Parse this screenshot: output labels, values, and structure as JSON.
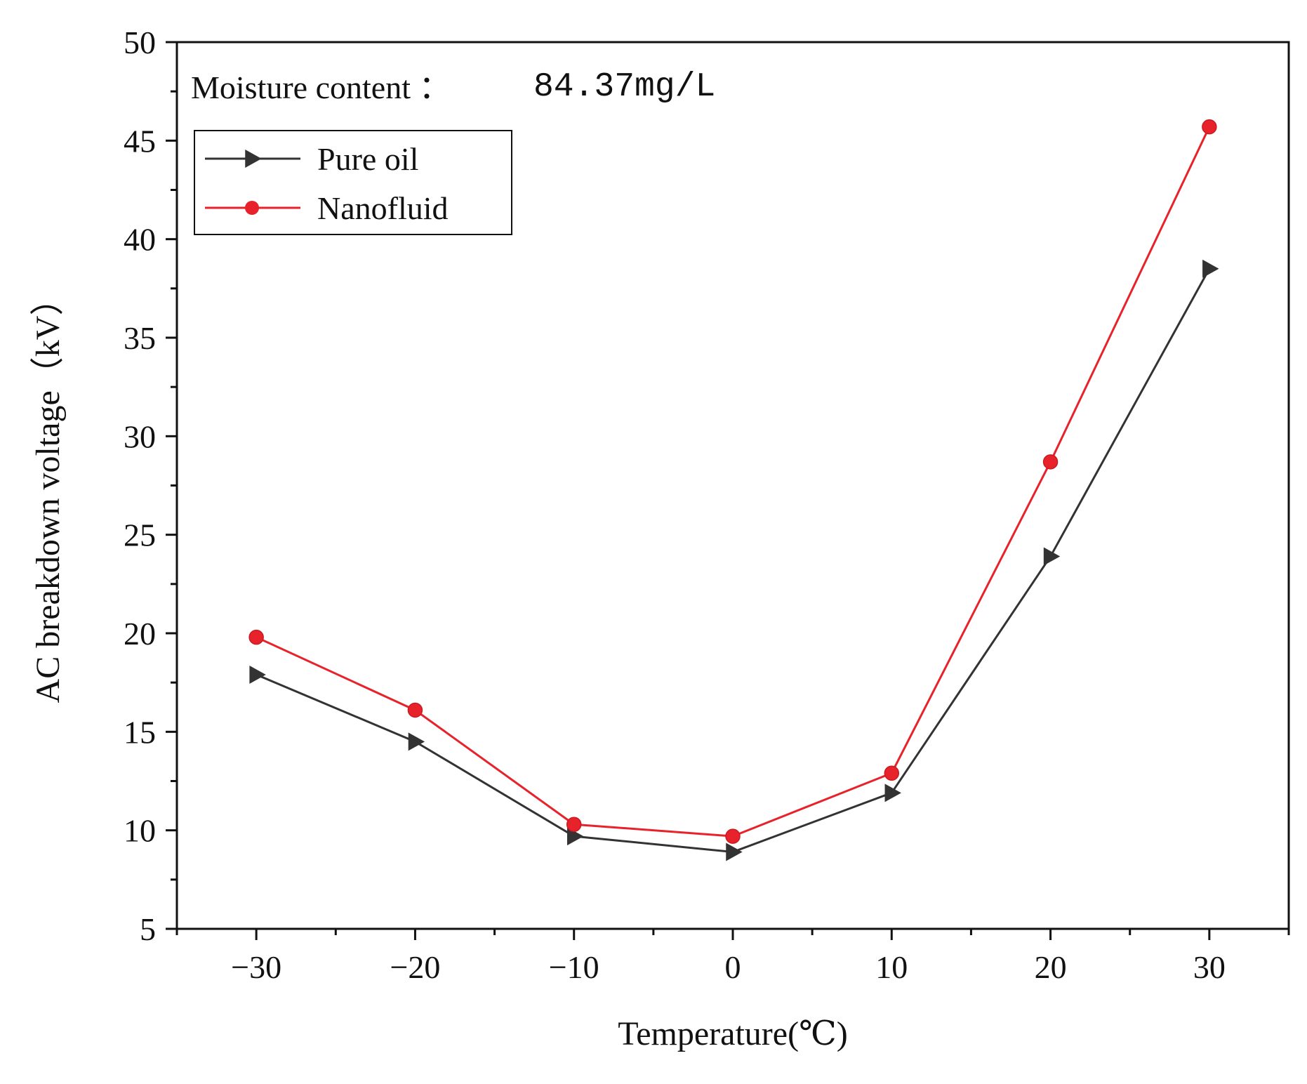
{
  "chart_data": {
    "type": "line",
    "title": "",
    "xlabel": "Temperature(℃)",
    "ylabel": "AC breakdown voltage（kV）",
    "xlim": [
      -35,
      35
    ],
    "ylim": [
      5,
      50
    ],
    "x_ticks": [
      -30,
      -20,
      -10,
      0,
      10,
      20,
      30
    ],
    "y_ticks": [
      5,
      10,
      15,
      20,
      25,
      30,
      35,
      40,
      45,
      50
    ],
    "x_tick_labels": [
      "−30",
      "−20",
      "−10",
      "0",
      "10",
      "20",
      "30"
    ],
    "y_tick_labels": [
      "5",
      "10",
      "15",
      "20",
      "25",
      "30",
      "35",
      "40",
      "45",
      "50"
    ],
    "x": [
      -30,
      -20,
      -10,
      0,
      10,
      20,
      30
    ],
    "series": [
      {
        "name": "Pure oil",
        "marker": "triangle-right",
        "color": "#333333",
        "values": [
          17.9,
          14.5,
          9.7,
          8.9,
          11.9,
          23.9,
          38.5
        ]
      },
      {
        "name": "Nanofluid",
        "marker": "circle",
        "color": "#e8222b",
        "values": [
          19.8,
          16.1,
          10.3,
          9.7,
          12.9,
          28.7,
          45.7
        ]
      }
    ],
    "annotation": {
      "label": "Moisture content ：",
      "value": "84.37mg/L"
    },
    "legend_position": "top-left",
    "grid": false
  }
}
